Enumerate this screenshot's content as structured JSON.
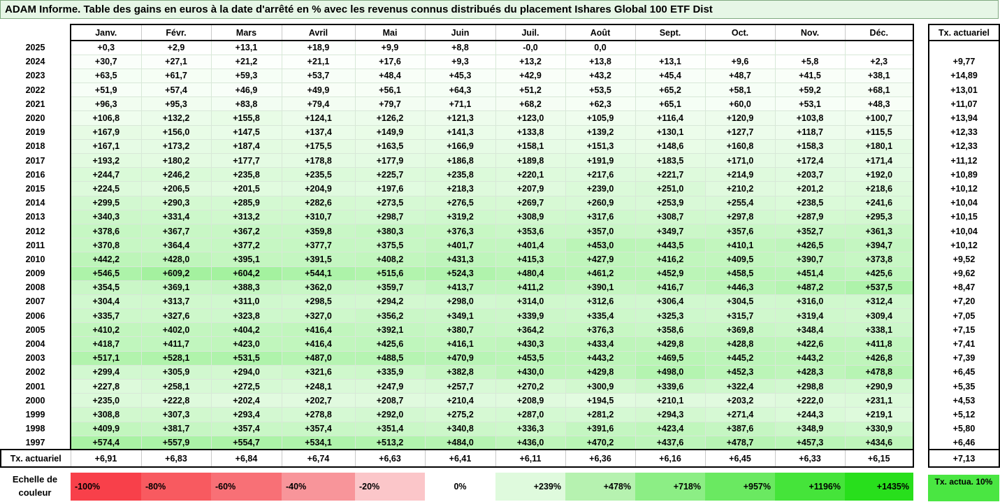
{
  "title": "ADAM Informe. Table des gains en euros à la date d'arrêté en % avec les revenus connus distribués du placement Ishares Global 100 ETF Dist",
  "months": [
    "Janv.",
    "Févr.",
    "Mars",
    "Avril",
    "Mai",
    "Juin",
    "Juil.",
    "Août",
    "Sept.",
    "Oct.",
    "Nov.",
    "Déc."
  ],
  "side_header": "Tx. actuariel",
  "rows": [
    {
      "year": "2025",
      "cells": [
        "+0,3",
        "+2,9",
        "+13,1",
        "+18,9",
        "+9,9",
        "+8,8",
        "-0,0",
        "0,0",
        "",
        "",
        "",
        ""
      ],
      "tx": ""
    },
    {
      "year": "2024",
      "cells": [
        "+30,7",
        "+27,1",
        "+21,2",
        "+21,1",
        "+17,6",
        "+9,3",
        "+13,2",
        "+13,8",
        "+13,1",
        "+9,6",
        "+5,8",
        "+2,3"
      ],
      "tx": "+9,77"
    },
    {
      "year": "2023",
      "cells": [
        "+63,5",
        "+61,7",
        "+59,3",
        "+53,7",
        "+48,4",
        "+45,3",
        "+42,9",
        "+43,2",
        "+45,4",
        "+48,7",
        "+41,5",
        "+38,1"
      ],
      "tx": "+14,89"
    },
    {
      "year": "2022",
      "cells": [
        "+51,9",
        "+57,4",
        "+46,9",
        "+49,9",
        "+56,1",
        "+64,3",
        "+51,2",
        "+53,5",
        "+65,2",
        "+58,1",
        "+59,2",
        "+68,1"
      ],
      "tx": "+13,01"
    },
    {
      "year": "2021",
      "cells": [
        "+96,3",
        "+95,3",
        "+83,8",
        "+79,4",
        "+79,7",
        "+71,1",
        "+68,2",
        "+62,3",
        "+65,1",
        "+60,0",
        "+53,1",
        "+48,3"
      ],
      "tx": "+11,07"
    },
    {
      "year": "2020",
      "cells": [
        "+106,8",
        "+132,2",
        "+155,8",
        "+124,1",
        "+126,2",
        "+121,3",
        "+123,0",
        "+105,9",
        "+116,4",
        "+120,9",
        "+103,8",
        "+100,7"
      ],
      "tx": "+13,94"
    },
    {
      "year": "2019",
      "cells": [
        "+167,9",
        "+156,0",
        "+147,5",
        "+137,4",
        "+149,9",
        "+141,3",
        "+133,8",
        "+139,2",
        "+130,1",
        "+127,7",
        "+118,7",
        "+115,5"
      ],
      "tx": "+12,33"
    },
    {
      "year": "2018",
      "cells": [
        "+167,1",
        "+173,2",
        "+187,4",
        "+175,5",
        "+163,5",
        "+166,9",
        "+158,1",
        "+151,3",
        "+148,6",
        "+160,8",
        "+158,3",
        "+180,1"
      ],
      "tx": "+12,33"
    },
    {
      "year": "2017",
      "cells": [
        "+193,2",
        "+180,2",
        "+177,7",
        "+178,8",
        "+177,9",
        "+186,8",
        "+189,8",
        "+191,9",
        "+183,5",
        "+171,0",
        "+172,4",
        "+171,4"
      ],
      "tx": "+11,12"
    },
    {
      "year": "2016",
      "cells": [
        "+244,7",
        "+246,2",
        "+235,8",
        "+235,5",
        "+225,7",
        "+235,8",
        "+220,1",
        "+217,6",
        "+221,7",
        "+214,9",
        "+203,7",
        "+192,0"
      ],
      "tx": "+10,89"
    },
    {
      "year": "2015",
      "cells": [
        "+224,5",
        "+206,5",
        "+201,5",
        "+204,9",
        "+197,6",
        "+218,3",
        "+207,9",
        "+239,0",
        "+251,0",
        "+210,2",
        "+201,2",
        "+218,6"
      ],
      "tx": "+10,12"
    },
    {
      "year": "2014",
      "cells": [
        "+299,5",
        "+290,3",
        "+285,9",
        "+282,6",
        "+273,5",
        "+276,5",
        "+269,7",
        "+260,9",
        "+253,9",
        "+255,4",
        "+238,5",
        "+241,6"
      ],
      "tx": "+10,04"
    },
    {
      "year": "2013",
      "cells": [
        "+340,3",
        "+331,4",
        "+313,2",
        "+310,7",
        "+298,7",
        "+319,2",
        "+308,9",
        "+317,6",
        "+308,7",
        "+297,8",
        "+287,9",
        "+295,3"
      ],
      "tx": "+10,15"
    },
    {
      "year": "2012",
      "cells": [
        "+378,6",
        "+367,7",
        "+367,2",
        "+359,8",
        "+380,3",
        "+376,3",
        "+353,6",
        "+357,0",
        "+349,7",
        "+357,6",
        "+352,7",
        "+361,3"
      ],
      "tx": "+10,04"
    },
    {
      "year": "2011",
      "cells": [
        "+370,8",
        "+364,4",
        "+377,2",
        "+377,7",
        "+375,5",
        "+401,7",
        "+401,4",
        "+453,0",
        "+443,5",
        "+410,1",
        "+426,5",
        "+394,7"
      ],
      "tx": "+10,12"
    },
    {
      "year": "2010",
      "cells": [
        "+442,2",
        "+428,0",
        "+395,1",
        "+391,5",
        "+408,2",
        "+431,3",
        "+415,3",
        "+427,9",
        "+416,2",
        "+409,5",
        "+390,7",
        "+373,8"
      ],
      "tx": "+9,52"
    },
    {
      "year": "2009",
      "cells": [
        "+546,5",
        "+609,2",
        "+604,2",
        "+544,1",
        "+515,6",
        "+524,3",
        "+480,4",
        "+461,2",
        "+452,9",
        "+458,5",
        "+451,4",
        "+425,6"
      ],
      "tx": "+9,62"
    },
    {
      "year": "2008",
      "cells": [
        "+354,5",
        "+369,1",
        "+388,3",
        "+362,0",
        "+359,7",
        "+413,7",
        "+411,2",
        "+390,1",
        "+416,7",
        "+446,3",
        "+487,2",
        "+537,5"
      ],
      "tx": "+8,47"
    },
    {
      "year": "2007",
      "cells": [
        "+304,4",
        "+313,7",
        "+311,0",
        "+298,5",
        "+294,2",
        "+298,0",
        "+314,0",
        "+312,6",
        "+306,4",
        "+304,5",
        "+316,0",
        "+312,4"
      ],
      "tx": "+7,20"
    },
    {
      "year": "2006",
      "cells": [
        "+335,7",
        "+327,6",
        "+323,8",
        "+327,0",
        "+356,2",
        "+349,1",
        "+339,9",
        "+335,4",
        "+325,3",
        "+315,7",
        "+319,4",
        "+309,4"
      ],
      "tx": "+7,05"
    },
    {
      "year": "2005",
      "cells": [
        "+410,2",
        "+402,0",
        "+404,2",
        "+416,4",
        "+392,1",
        "+380,7",
        "+364,2",
        "+376,3",
        "+358,6",
        "+369,8",
        "+348,4",
        "+338,1"
      ],
      "tx": "+7,15"
    },
    {
      "year": "2004",
      "cells": [
        "+418,7",
        "+411,7",
        "+423,0",
        "+416,4",
        "+425,6",
        "+416,1",
        "+430,3",
        "+433,4",
        "+429,8",
        "+428,8",
        "+422,6",
        "+411,8"
      ],
      "tx": "+7,41"
    },
    {
      "year": "2003",
      "cells": [
        "+517,1",
        "+528,1",
        "+531,5",
        "+487,0",
        "+488,5",
        "+470,9",
        "+453,5",
        "+443,2",
        "+469,5",
        "+445,2",
        "+443,2",
        "+426,8"
      ],
      "tx": "+7,39"
    },
    {
      "year": "2002",
      "cells": [
        "+299,4",
        "+305,9",
        "+294,0",
        "+321,6",
        "+335,9",
        "+382,8",
        "+430,0",
        "+429,8",
        "+498,0",
        "+452,3",
        "+428,3",
        "+478,8"
      ],
      "tx": "+6,45"
    },
    {
      "year": "2001",
      "cells": [
        "+227,8",
        "+258,1",
        "+272,5",
        "+248,1",
        "+247,9",
        "+257,7",
        "+270,2",
        "+300,9",
        "+339,6",
        "+322,4",
        "+298,8",
        "+290,9"
      ],
      "tx": "+5,35"
    },
    {
      "year": "2000",
      "cells": [
        "+235,0",
        "+222,8",
        "+202,4",
        "+202,7",
        "+208,7",
        "+210,4",
        "+208,9",
        "+194,5",
        "+210,1",
        "+203,2",
        "+222,0",
        "+231,1"
      ],
      "tx": "+4,53"
    },
    {
      "year": "1999",
      "cells": [
        "+308,8",
        "+307,3",
        "+293,4",
        "+278,8",
        "+292,0",
        "+275,2",
        "+287,0",
        "+281,2",
        "+294,3",
        "+271,4",
        "+244,3",
        "+219,1"
      ],
      "tx": "+5,12"
    },
    {
      "year": "1998",
      "cells": [
        "+409,9",
        "+381,7",
        "+357,4",
        "+357,4",
        "+351,4",
        "+340,8",
        "+336,3",
        "+391,6",
        "+423,4",
        "+387,6",
        "+348,9",
        "+330,9"
      ],
      "tx": "+5,80"
    },
    {
      "year": "1997",
      "cells": [
        "+574,4",
        "+557,9",
        "+554,7",
        "+534,1",
        "+513,2",
        "+484,0",
        "+436,0",
        "+470,2",
        "+437,6",
        "+478,7",
        "+457,3",
        "+434,6"
      ],
      "tx": "+6,46"
    }
  ],
  "footer": {
    "label": "Tx. actuariel",
    "values": [
      "+6,91",
      "+6,83",
      "+6,84",
      "+6,74",
      "+6,63",
      "+6,41",
      "+6,11",
      "+6,36",
      "+6,16",
      "+6,45",
      "+6,33",
      "+6,15"
    ],
    "tx": "+7,13"
  },
  "scale": {
    "label": "Echelle de couleur",
    "items": [
      {
        "text": "-100%",
        "color": "#f8404a"
      },
      {
        "text": "-80%",
        "color": "#f85a60"
      },
      {
        "text": "-60%",
        "color": "#f87076"
      },
      {
        "text": "-40%",
        "color": "#f8959a"
      },
      {
        "text": "-20%",
        "color": "#fbc6c9"
      },
      {
        "text": "0%",
        "color": "#ffffff"
      },
      {
        "text": "+239%",
        "color": "#dffadd"
      },
      {
        "text": "+478%",
        "color": "#b6f2b0"
      },
      {
        "text": "+718%",
        "color": "#8cee85"
      },
      {
        "text": "+957%",
        "color": "#6ae961"
      },
      {
        "text": "+1196%",
        "color": "#45e43a"
      },
      {
        "text": "+1435%",
        "color": "#28df1c"
      }
    ],
    "side_text": "Tx. actua. 10%",
    "side_color": "#4ae642"
  },
  "colors": {
    "title_bg": "#e6f6e6",
    "positive_max": "#28df1c",
    "negative_max": "#f8404a"
  }
}
